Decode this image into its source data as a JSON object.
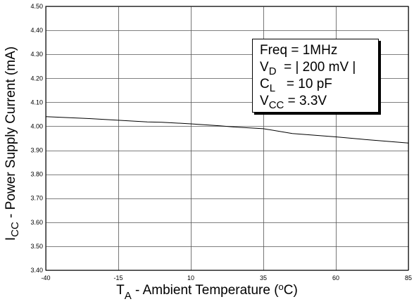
{
  "chart_data": {
    "type": "line",
    "xlabel": {
      "main": "T",
      "sub": "A",
      "rest": " - Ambient Temperature (",
      "sup": "o",
      "end": "C)"
    },
    "ylabel": {
      "main": "I",
      "sub": "CC",
      "rest": " - Power Supply Current (mA)"
    },
    "xlim": [
      -40,
      85
    ],
    "ylim": [
      3.4,
      4.5
    ],
    "xticks": [
      -40,
      -15,
      10,
      35,
      60,
      85
    ],
    "xtick_labels": [
      "-40",
      "-15",
      "10",
      "35",
      "60",
      "85"
    ],
    "yticks": [
      3.4,
      3.5,
      3.6,
      3.7,
      3.8,
      3.9,
      4.0,
      4.1,
      4.2,
      4.3,
      4.4,
      4.5
    ],
    "ytick_labels": [
      "3.40",
      "3.50",
      "3.60",
      "3.70",
      "3.80",
      "3.90",
      "4.00",
      "4.10",
      "4.20",
      "4.30",
      "4.40",
      "4.50"
    ],
    "grid": true,
    "series": [
      {
        "x": [
          -40,
          -25,
          -15,
          -5,
          0,
          10,
          20,
          25,
          35,
          45,
          60,
          70,
          85
        ],
        "values": [
          4.04,
          4.032,
          4.025,
          4.018,
          4.017,
          4.01,
          4.002,
          3.997,
          3.99,
          3.97,
          3.956,
          3.945,
          3.93
        ],
        "color": "#000000"
      }
    ],
    "legend": {
      "position": "top-right",
      "lines": [
        {
          "main": "Freq = 1MHz",
          "sub": "",
          "rest": ""
        },
        {
          "main": "V",
          "sub": "D",
          "rest": "  = | 200 mV |"
        },
        {
          "main": "C",
          "sub": "L",
          "rest": "   = 10 pF"
        },
        {
          "main": "V",
          "sub": "CC",
          "rest": " = 3.3V"
        }
      ]
    }
  }
}
